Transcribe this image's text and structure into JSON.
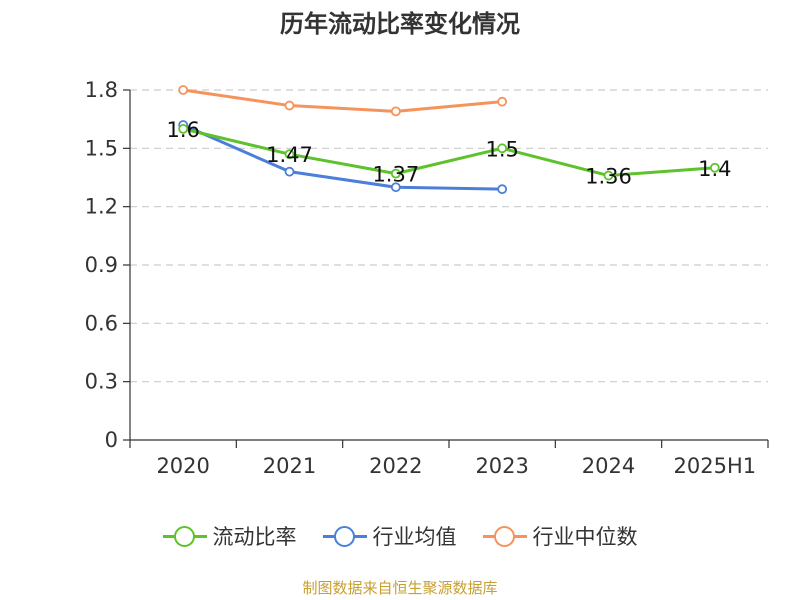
{
  "chart_data": {
    "type": "line",
    "title": "历年流动比率变化情况",
    "categories": [
      "2020",
      "2021",
      "2022",
      "2023",
      "2024",
      "2025H1"
    ],
    "ylim": [
      0,
      1.8
    ],
    "yticks": [
      "0",
      "0.3",
      "0.6",
      "0.9",
      "1.2",
      "1.5",
      "1.8"
    ],
    "grid": true,
    "legend_position": "bottom",
    "series": [
      {
        "name": "流动比率",
        "values": [
          1.6,
          1.47,
          1.37,
          1.5,
          1.36,
          1.4
        ],
        "labels": [
          "1.6",
          "1.47",
          "1.37",
          "1.5",
          "1.36",
          "1.4"
        ],
        "color": "#5ec22d"
      },
      {
        "name": "行业均值",
        "values": [
          1.62,
          1.38,
          1.3,
          1.29,
          null,
          null
        ],
        "color": "#4b7fd9"
      },
      {
        "name": "行业中位数",
        "values": [
          1.8,
          1.72,
          1.69,
          1.74,
          null,
          null
        ],
        "color": "#f5935c"
      }
    ]
  },
  "source_note": "制图数据来自恒生聚源数据库"
}
